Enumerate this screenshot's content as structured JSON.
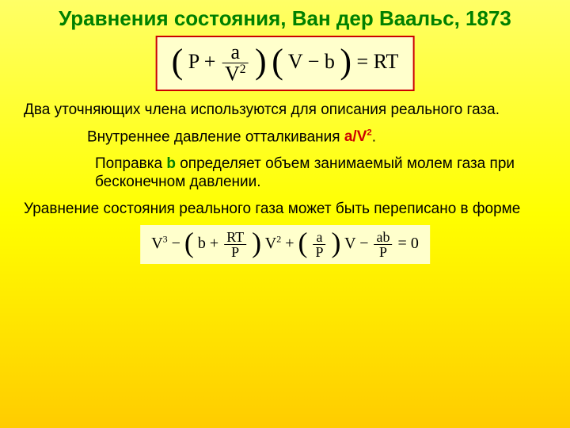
{
  "title": "Уравнения состояния, Ван дер Ваальс, 1873",
  "eq1": {
    "P": "P",
    "plus": "+",
    "a": "a",
    "V2": "V",
    "V2exp": "2",
    "V": "V",
    "minus": "−",
    "b": "b",
    "eq": "=",
    "RT": "RT"
  },
  "p1": "Два уточняющих члена используются для описания реального газа.",
  "p2_pre": "Внутреннее давление отталкивания ",
  "p2_av2_a": "a/V",
  "p2_av2_exp": "2",
  "p2_post": ".",
  "p3_pre": "Поправка ",
  "p3_b": "b",
  "p3_post": " определяет объем занимаемый молем газа при бесконечном давлении.",
  "p4": "Уравнение состояния реального газа может быть переписано в форме",
  "eq2": {
    "V3": "V",
    "exp3": "3",
    "minus": "−",
    "b": "b",
    "plus": "+",
    "RT": "RT",
    "P": "P",
    "V2": "V",
    "exp2": "2",
    "a": "a",
    "V": "V",
    "ab": "ab",
    "eq": "=",
    "zero": "0"
  },
  "style": {
    "title_color": "#008000",
    "border_color": "#cc0000",
    "bg_gradient_top": "#ffff66",
    "bg_gradient_mid": "#ffff00",
    "bg_gradient_bot": "#ffcc00",
    "box_bg": "#ffffcc",
    "title_fontsize": 26,
    "body_fontsize": 19
  }
}
